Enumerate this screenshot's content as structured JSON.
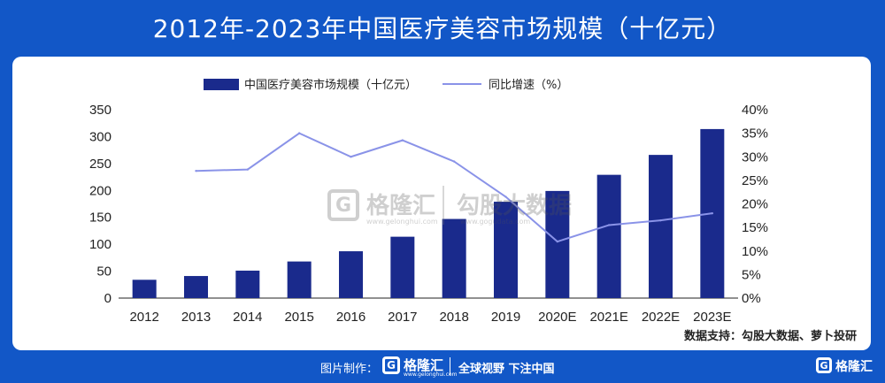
{
  "title": "2012年-2023年中国医疗美容市场规模（十亿元）",
  "chart_data": {
    "type": "bar",
    "categories": [
      "2012",
      "2013",
      "2014",
      "2015",
      "2016",
      "2017",
      "2018",
      "2019",
      "2020E",
      "2021E",
      "2022E",
      "2023E"
    ],
    "series": [
      {
        "name": "中国医疗美容市场规模（十亿元）",
        "type": "bar",
        "axis": "left",
        "values": [
          34,
          41,
          51,
          68,
          87,
          114,
          147,
          179,
          199,
          229,
          266,
          314
        ]
      },
      {
        "name": "同比增速（%）",
        "type": "line",
        "axis": "right",
        "values": [
          null,
          27,
          27.3,
          35,
          30,
          33.5,
          29,
          21.5,
          12,
          15.5,
          16.5,
          18
        ]
      }
    ],
    "y_left": {
      "range": [
        0,
        350
      ],
      "ticks": [
        "0",
        "50",
        "100",
        "150",
        "200",
        "250",
        "300",
        "350"
      ]
    },
    "y_right": {
      "range": [
        0,
        40
      ],
      "ticks": [
        "0%",
        "5%",
        "10%",
        "15%",
        "20%",
        "25%",
        "30%",
        "35%",
        "40%"
      ]
    },
    "legend_position": "top-left",
    "grid": false,
    "colors": {
      "bar": "#1a2a8c",
      "line": "#8a93e8"
    }
  },
  "watermark": {
    "logo_letter": "G",
    "name": "格隆汇",
    "url": "www.gelonghui.com",
    "name2": "勾股大数据",
    "url2": "www.gogudata.com"
  },
  "source": "数据支持：勾股大数据、萝卜投研",
  "footer": {
    "made_by": "图片制作：",
    "logo_letter": "G",
    "brand": "格隆汇",
    "brand_url": "www.gelonghui.com",
    "slogan": "全球视野 下注中国",
    "corner_logo_letter": "G",
    "corner_brand": "格隆汇"
  }
}
